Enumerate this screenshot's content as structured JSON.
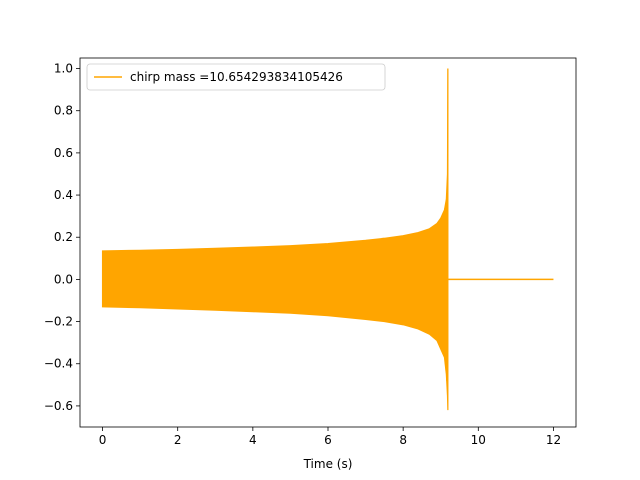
{
  "chart_data": {
    "type": "line",
    "title": "",
    "xlabel": "Time (s)",
    "ylabel": "",
    "xlim": [
      -0.6,
      12.6
    ],
    "ylim": [
      -0.7,
      1.05
    ],
    "x_ticks": [
      0,
      2,
      4,
      6,
      8,
      10,
      12
    ],
    "y_ticks": [
      -0.6,
      -0.4,
      -0.2,
      0.0,
      0.2,
      0.4,
      0.6,
      0.8,
      1.0
    ],
    "x_tick_labels": [
      "0",
      "2",
      "4",
      "6",
      "8",
      "10",
      "12"
    ],
    "y_tick_labels": [
      "−0.6",
      "−0.4",
      "−0.2",
      "0.0",
      "0.2",
      "0.4",
      "0.6",
      "0.8",
      "1.0"
    ],
    "grid": false,
    "legend": {
      "position": "top-left",
      "entries": [
        "chirp mass =10.654293834105426"
      ]
    },
    "series": [
      {
        "name": "chirp mass =10.654293834105426",
        "color": "#ffa500",
        "envelope_upper": {
          "x": [
            0,
            1,
            2,
            3,
            4,
            5,
            6,
            7,
            7.5,
            8,
            8.4,
            8.7,
            8.9,
            9.0,
            9.1,
            9.15,
            9.18,
            9.19
          ],
          "y": [
            0.135,
            0.138,
            0.142,
            0.147,
            0.153,
            0.16,
            0.17,
            0.185,
            0.195,
            0.207,
            0.222,
            0.24,
            0.265,
            0.29,
            0.33,
            0.38,
            0.5,
            1.0
          ]
        },
        "envelope_lower": {
          "x": [
            0,
            1,
            2,
            3,
            4,
            5,
            6,
            7,
            7.5,
            8,
            8.4,
            8.7,
            8.9,
            9.0,
            9.1,
            9.15,
            9.18,
            9.19
          ],
          "y": [
            -0.13,
            -0.134,
            -0.14,
            -0.146,
            -0.153,
            -0.16,
            -0.172,
            -0.19,
            -0.2,
            -0.215,
            -0.235,
            -0.26,
            -0.29,
            -0.33,
            -0.37,
            -0.45,
            -0.55,
            -0.62
          ]
        },
        "ringdown": {
          "x": [
            9.25,
            12.0
          ],
          "y": [
            0.0,
            0.0
          ]
        }
      }
    ]
  }
}
